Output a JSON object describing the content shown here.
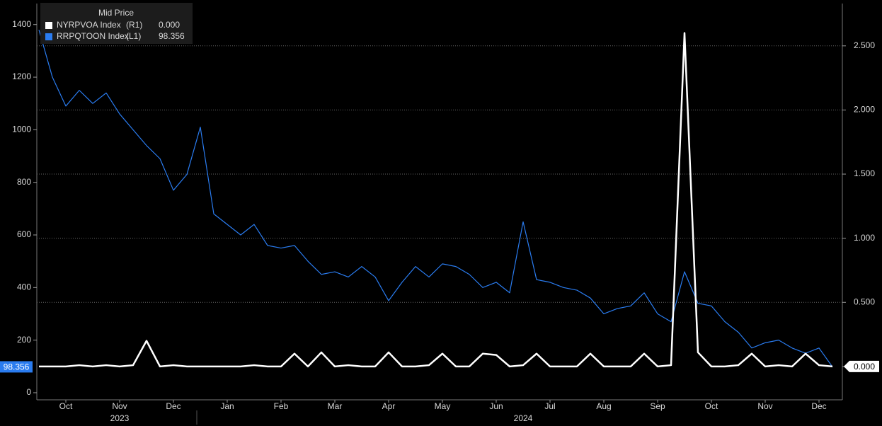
{
  "chart_data": {
    "type": "line",
    "legend_title": "Mid Price",
    "categories": [
      null,
      null,
      "Oct",
      null,
      null,
      null,
      "Nov",
      null,
      null,
      null,
      "Dec",
      null,
      null,
      null,
      "Jan",
      null,
      null,
      null,
      "Feb",
      null,
      null,
      null,
      "Mar",
      null,
      null,
      null,
      "Apr",
      null,
      null,
      null,
      "May",
      null,
      null,
      null,
      "Jun",
      null,
      null,
      null,
      "Jul",
      null,
      null,
      null,
      "Aug",
      null,
      null,
      null,
      "Sep",
      null,
      null,
      null,
      "Oct",
      null,
      null,
      null,
      "Nov",
      null,
      null,
      null,
      "Dec",
      null
    ],
    "year_labels": [
      "2023",
      "2024"
    ],
    "series": [
      {
        "name": "NYRPVOA Index",
        "legend_tag": "(R1)",
        "last_label": "0.000",
        "axis": "y2",
        "color": "#ffffff",
        "values": [
          0,
          0,
          0,
          0.01,
          0,
          0.01,
          0,
          0.01,
          0.2,
          0,
          0.01,
          0,
          0,
          0,
          0,
          0,
          0.01,
          0,
          0,
          0.1,
          0,
          0.11,
          0,
          0.01,
          0,
          0,
          0.11,
          0,
          0,
          0.01,
          0.1,
          0,
          0,
          0.1,
          0.09,
          0,
          0.01,
          0.1,
          0,
          0,
          0,
          0.1,
          0,
          0,
          0,
          0.1,
          0,
          0.01,
          2.6,
          0.11,
          0,
          0,
          0.01,
          0.1,
          0,
          0.01,
          0,
          0.1,
          0.01,
          0
        ]
      },
      {
        "name": "RRPQTOON Index",
        "legend_tag": "(L1)",
        "last_label": "98.356",
        "color": "#2a7cf0",
        "values": [
          1380,
          1200,
          1090,
          1150,
          1100,
          1140,
          1060,
          1000,
          940,
          890,
          770,
          830,
          1010,
          680,
          640,
          600,
          640,
          560,
          550,
          560,
          500,
          450,
          460,
          440,
          480,
          440,
          350,
          420,
          480,
          440,
          490,
          480,
          450,
          400,
          420,
          380,
          650,
          430,
          420,
          400,
          390,
          360,
          300,
          320,
          330,
          380,
          300,
          270,
          460,
          340,
          330,
          270,
          230,
          170,
          190,
          200,
          170,
          150,
          170,
          98.356
        ]
      }
    ],
    "ylim": [
      -27,
      1480
    ],
    "yticks": [
      0,
      200,
      400,
      600,
      800,
      1000,
      1200,
      1400
    ],
    "y2lim": [
      -0.26,
      2.83
    ],
    "y2ticks": [
      {
        "value": 0,
        "label": "0.000"
      },
      {
        "value": 0.5,
        "label": "0.500"
      },
      {
        "value": 1,
        "label": "1.000"
      },
      {
        "value": 1.5,
        "label": "1.500"
      },
      {
        "value": 2,
        "label": "2.000"
      },
      {
        "value": 2.5,
        "label": "2.500"
      }
    ],
    "grid": true
  }
}
